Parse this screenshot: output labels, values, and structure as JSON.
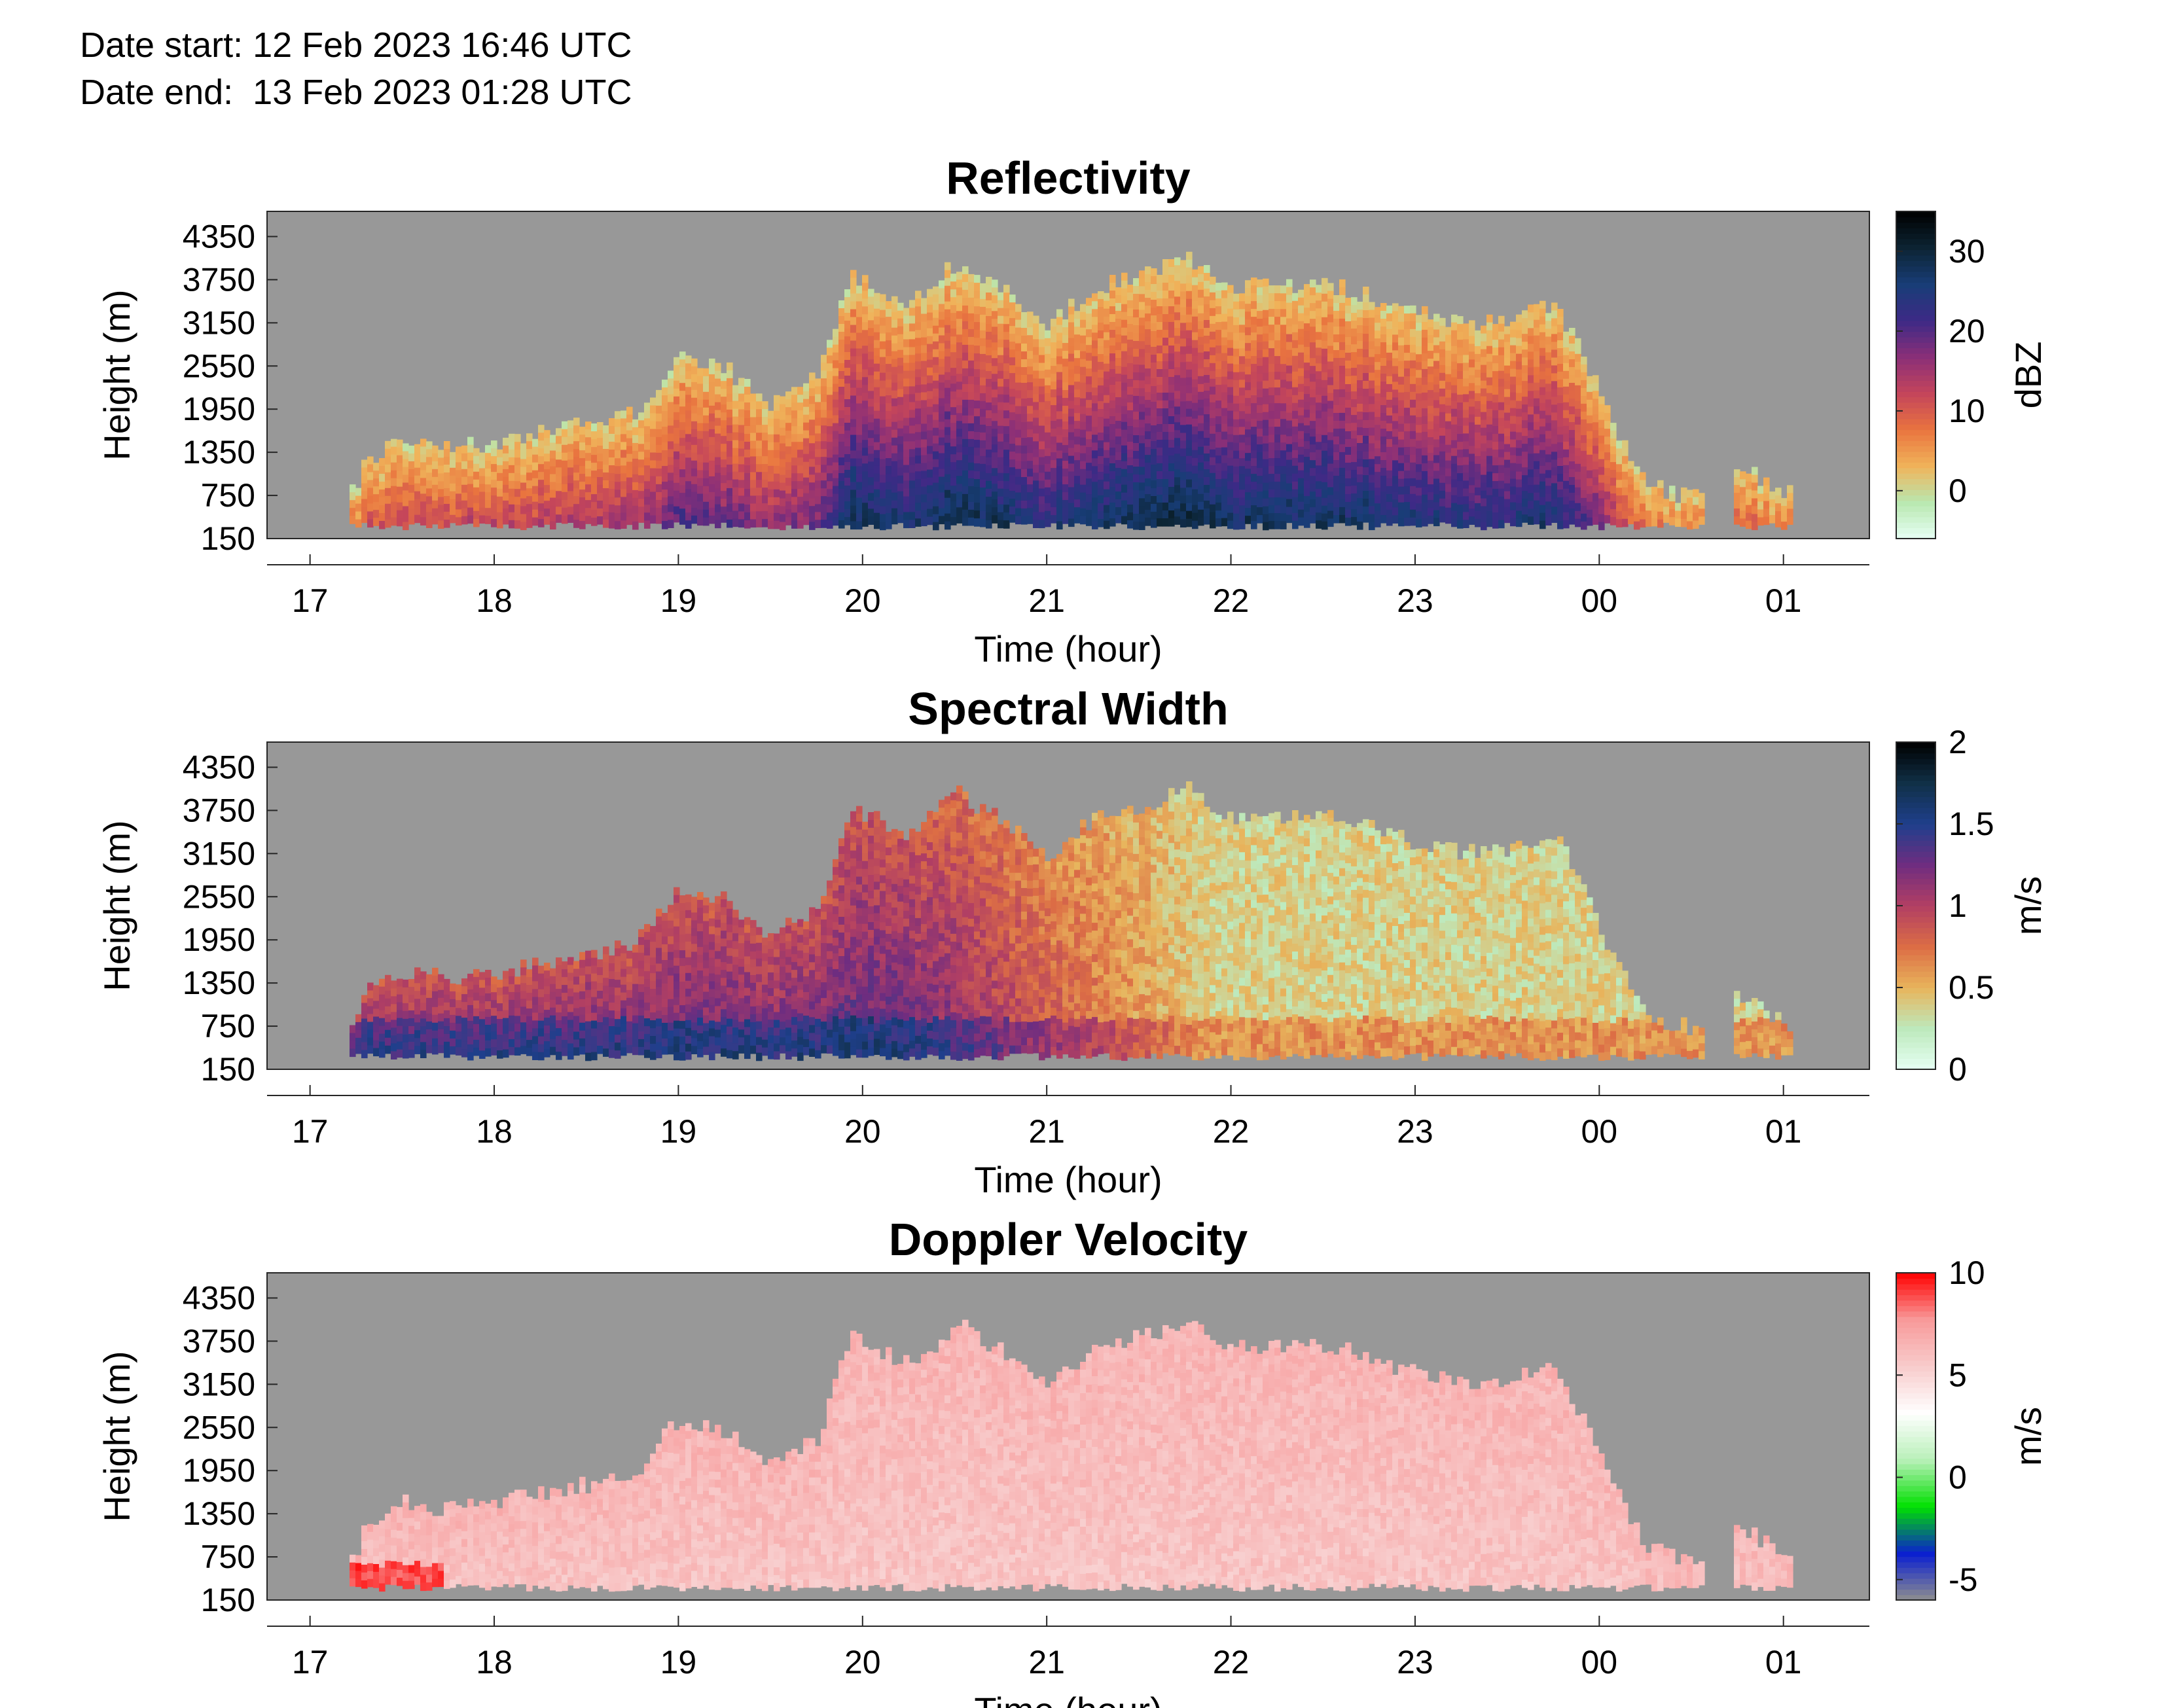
{
  "header": {
    "date_start": "Date start: 12 Feb 2023 16:46 UTC",
    "date_end": "Date end:  13 Feb 2023 01:28 UTC"
  },
  "colors": {
    "background_gray": "#989898",
    "reflectivity_scale": [
      "#e6fff4",
      "#b9e8b0",
      "#f0b35a",
      "#e9743f",
      "#c4455b",
      "#8a2f78",
      "#3d2a86",
      "#183d77",
      "#0c2433",
      "#000000"
    ],
    "spectral_width_scale": [
      "#e6fff4",
      "#bde9bc",
      "#e8b45c",
      "#dc6d45",
      "#b23f63",
      "#6f2d80",
      "#1f3f8c",
      "#103047",
      "#000000"
    ],
    "doppler_scale": [
      "#8f8f8f",
      "#0a1fd0",
      "#00e000",
      "#b8f0b8",
      "#ffffff",
      "#f8cccc",
      "#f89a9a",
      "#ff0000"
    ]
  },
  "chart_data": [
    {
      "type": "heatmap",
      "title": "Reflectivity",
      "xlabel": "Time (hour)",
      "ylabel": "Height (m)",
      "xticks": [
        "17",
        "18",
        "19",
        "20",
        "21",
        "22",
        "23",
        "00",
        "01"
      ],
      "yticks": [
        "150",
        "750",
        "1350",
        "1950",
        "2550",
        "3150",
        "3750",
        "4350"
      ],
      "xlim": [
        "16:46",
        "01:28"
      ],
      "ylim": [
        150,
        4700
      ],
      "colorbar": {
        "label": "dBZ",
        "ticks": [
          "0",
          "10",
          "20",
          "30"
        ],
        "range": [
          -6,
          35
        ]
      },
      "echo_top_m": [
        [
          "17:15",
          1200
        ],
        [
          "17:30",
          1500
        ],
        [
          "17:45",
          1400
        ],
        [
          "18:00",
          1500
        ],
        [
          "18:15",
          1650
        ],
        [
          "18:30",
          1750
        ],
        [
          "18:45",
          1900
        ],
        [
          "19:00",
          2700
        ],
        [
          "19:15",
          2500
        ],
        [
          "19:30",
          2000
        ],
        [
          "19:45",
          2400
        ],
        [
          "19:55",
          3800
        ],
        [
          "20:15",
          3400
        ],
        [
          "20:30",
          4000
        ],
        [
          "20:45",
          3600
        ],
        [
          "21:00",
          3100
        ],
        [
          "21:15",
          3650
        ],
        [
          "21:30",
          3800
        ],
        [
          "21:45",
          4050
        ],
        [
          "22:00",
          3650
        ],
        [
          "22:30",
          3700
        ],
        [
          "22:45",
          3500
        ],
        [
          "23:00",
          3300
        ],
        [
          "23:15",
          3150
        ],
        [
          "23:30",
          3200
        ],
        [
          "23:45",
          3400
        ],
        [
          "23:55",
          2600
        ],
        [
          "00:05",
          1600
        ],
        [
          "00:15",
          900
        ],
        [
          "00:30",
          700
        ],
        [
          "00:45",
          1150
        ],
        [
          "01:00",
          800
        ]
      ],
      "core_dbz_max": 30
    },
    {
      "type": "heatmap",
      "title": "Spectral Width",
      "xlabel": "Time (hour)",
      "ylabel": "Height (m)",
      "xticks": [
        "17",
        "18",
        "19",
        "20",
        "21",
        "22",
        "23",
        "00",
        "01"
      ],
      "yticks": [
        "150",
        "750",
        "1350",
        "1950",
        "2550",
        "3150",
        "3750",
        "4350"
      ],
      "xlim": [
        "16:46",
        "01:28"
      ],
      "ylim": [
        150,
        4700
      ],
      "colorbar": {
        "label": "m/s",
        "ticks": [
          "0",
          "0.5",
          "1",
          "1.5",
          "2"
        ],
        "range": [
          0,
          2
        ]
      }
    },
    {
      "type": "heatmap",
      "title": "Doppler Velocity",
      "xlabel": "Time (hour)",
      "ylabel": "Height (m)",
      "xticks": [
        "17",
        "18",
        "19",
        "20",
        "21",
        "22",
        "23",
        "00",
        "01"
      ],
      "yticks": [
        "150",
        "750",
        "1350",
        "1950",
        "2550",
        "3150",
        "3750",
        "4350"
      ],
      "xlim": [
        "16:46",
        "01:28"
      ],
      "ylim": [
        150,
        4700
      ],
      "colorbar": {
        "label": "m/s",
        "ticks": [
          "-5",
          "0",
          "5",
          "10"
        ],
        "range": [
          -6,
          10
        ]
      }
    }
  ]
}
